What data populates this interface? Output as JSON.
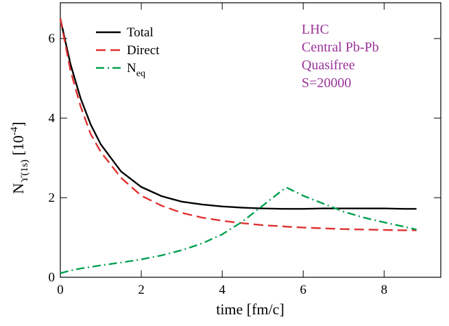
{
  "chart_data": {
    "type": "line",
    "xlabel": "time [fm/c]",
    "ylabel": {
      "main": "N",
      "sub": "ϒ(1s)",
      "unit": "[10",
      "exp": "-4",
      "close": "]"
    },
    "annotations": [
      "LHC",
      "Central Pb-Pb",
      "Quasifree",
      "S=20000"
    ],
    "annotation_color": "#993399",
    "x": [
      0,
      0.25,
      0.5,
      0.75,
      1,
      1.5,
      2,
      2.5,
      3,
      3.5,
      4,
      4.5,
      5,
      5.5,
      5.6,
      6,
      6.5,
      7,
      7.5,
      8,
      8.5,
      8.8
    ],
    "series": [
      {
        "name": "Total",
        "color": "#000000",
        "dash": "solid",
        "values": [
          6.5,
          5.36,
          4.5,
          3.84,
          3.34,
          2.66,
          2.27,
          2.04,
          1.9,
          1.83,
          1.78,
          1.75,
          1.73,
          1.72,
          1.72,
          1.72,
          1.73,
          1.73,
          1.73,
          1.73,
          1.72,
          1.72
        ]
      },
      {
        "name": "Direct",
        "color": "#e03030",
        "dash": "dashed",
        "values": [
          6.5,
          5.2,
          4.3,
          3.6,
          3.15,
          2.5,
          2.05,
          1.8,
          1.62,
          1.5,
          1.42,
          1.36,
          1.31,
          1.28,
          1.27,
          1.25,
          1.23,
          1.21,
          1.2,
          1.19,
          1.18,
          1.18
        ]
      },
      {
        "name": "N",
        "name_sub": "eq",
        "color": "#00a050",
        "dash": "dashdot",
        "values": [
          0.1,
          0.17,
          0.22,
          0.26,
          0.3,
          0.37,
          0.45,
          0.55,
          0.68,
          0.85,
          1.08,
          1.4,
          1.8,
          2.2,
          2.25,
          2.05,
          1.85,
          1.65,
          1.5,
          1.38,
          1.27,
          1.2
        ]
      }
    ],
    "xlim": [
      0,
      9.4
    ],
    "ylim": [
      0,
      6.9
    ],
    "xticks": [
      0,
      2,
      4,
      6,
      8
    ],
    "yticks": [
      0,
      2,
      4,
      6
    ],
    "legend": "upper-left",
    "grid": false
  }
}
